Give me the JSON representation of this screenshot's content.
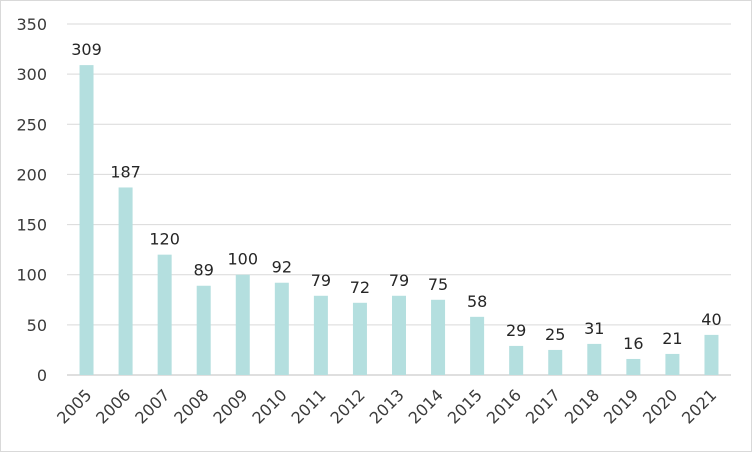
{
  "chart_data": {
    "type": "bar",
    "title": "",
    "xlabel": "",
    "ylabel": "",
    "categories": [
      "2005",
      "2006",
      "2007",
      "2008",
      "2009",
      "2010",
      "2011",
      "2012",
      "2013",
      "2014",
      "2015",
      "2016",
      "2017",
      "2018",
      "2019",
      "2020",
      "2021"
    ],
    "values": [
      309,
      187,
      120,
      89,
      100,
      92,
      79,
      72,
      79,
      75,
      58,
      29,
      25,
      31,
      16,
      21,
      40
    ],
    "ylim": [
      0,
      350
    ],
    "yticks": [
      0,
      50,
      100,
      150,
      200,
      250,
      300,
      350
    ],
    "grid": true,
    "legend": "none",
    "data_labels": true,
    "colors": {
      "bar": "#b4dfdf",
      "grid": "#d9d9d9",
      "text": "#262626",
      "border": "#d9d9d9"
    }
  }
}
